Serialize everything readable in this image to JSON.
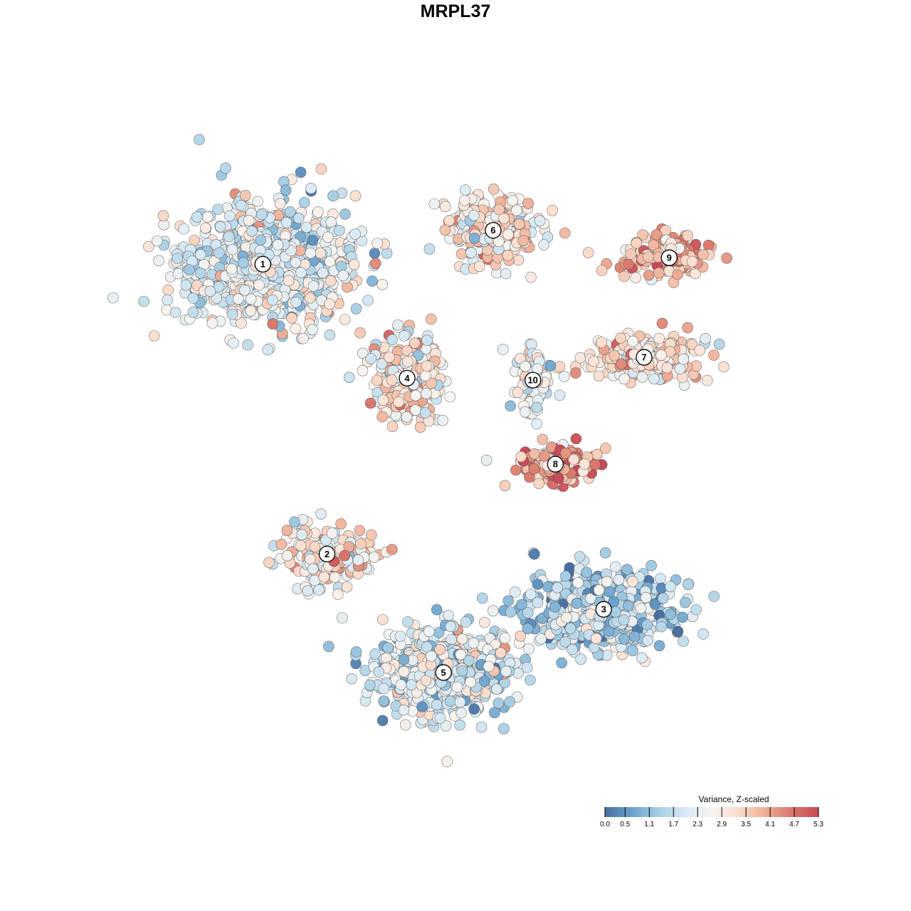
{
  "chart_data": {
    "type": "scatter",
    "title": "MRPL37",
    "xlabel": "",
    "ylabel": "",
    "grid": false,
    "xlim": [
      0,
      100
    ],
    "ylim": [
      0,
      100
    ],
    "color_legend": {
      "title": "Variance, Z-scaled",
      "ticks": [
        "0.0",
        "0.5",
        "1.1",
        "1.7",
        "2.3",
        "2.9",
        "3.5",
        "4.1",
        "4.7",
        "5.3"
      ],
      "min": 0.0,
      "max": 5.3,
      "placement": "bottom-right",
      "colors": [
        "#4a6fa0",
        "#6aa0cc",
        "#a6cde3",
        "#d6e8f2",
        "#f6f4f1",
        "#fadccb",
        "#eeae96",
        "#d9776b",
        "#c74a58"
      ]
    },
    "clusters": [
      {
        "label": "1",
        "x": 18.2,
        "y": 79.1,
        "sx": 12.5,
        "sy": 8.5,
        "mean": 2.3,
        "n": 850
      },
      {
        "label": "2",
        "x": 27.9,
        "y": 34.6,
        "sx": 6.5,
        "sy": 4.5,
        "mean": 2.9,
        "n": 180
      },
      {
        "label": "3",
        "x": 69.7,
        "y": 26.1,
        "sx": 10,
        "sy": 5.5,
        "mean": 1.5,
        "n": 600
      },
      {
        "label": "4",
        "x": 40.0,
        "y": 61.6,
        "sx": 4.5,
        "sy": 5.5,
        "mean": 3.0,
        "n": 280
      },
      {
        "label": "5",
        "x": 45.5,
        "y": 16.4,
        "sx": 9,
        "sy": 6,
        "mean": 2.0,
        "n": 650
      },
      {
        "label": "6",
        "x": 53.0,
        "y": 84.3,
        "sx": 6,
        "sy": 4.5,
        "mean": 3.1,
        "n": 280
      },
      {
        "label": "7",
        "x": 75.8,
        "y": 64.8,
        "sx": 7.5,
        "sy": 3,
        "mean": 3.2,
        "n": 220
      },
      {
        "label": "8",
        "x": 62.4,
        "y": 48.4,
        "sx": 6,
        "sy": 2.5,
        "mean": 4.0,
        "n": 140
      },
      {
        "label": "9",
        "x": 79.6,
        "y": 80.1,
        "sx": 6,
        "sy": 3,
        "mean": 3.7,
        "n": 160
      },
      {
        "label": "10",
        "x": 59.0,
        "y": 61.3,
        "sx": 3,
        "sy": 5,
        "mean": 2.5,
        "n": 90
      }
    ]
  }
}
